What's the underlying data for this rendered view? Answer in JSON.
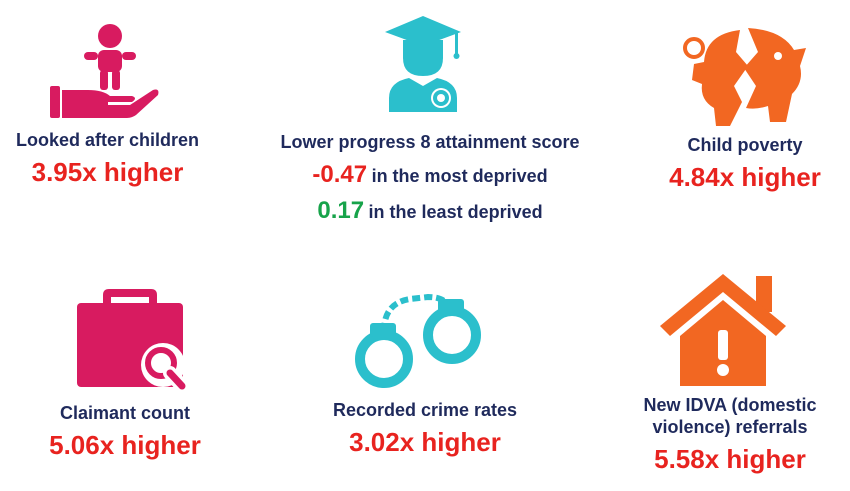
{
  "colors": {
    "navy": "#1f2a5c",
    "red": "#e8231f",
    "green": "#17a34a",
    "pink": "#d81b60",
    "teal": "#2bbfcc",
    "orange": "#f26722"
  },
  "stats": {
    "looked_after": {
      "label": "Looked after children",
      "value": "3.95x higher",
      "icon": "hand-holding-child-icon"
    },
    "progress8": {
      "label": "Lower progress 8 attainment score",
      "most_value": "-0.47",
      "most_text": "in the most deprived",
      "least_value": "0.17",
      "least_text": "in the least deprived",
      "icon": "graduate-icon"
    },
    "child_poverty": {
      "label": "Child poverty",
      "value": "4.84x higher",
      "icon": "broken-piggy-bank-icon"
    },
    "claimant": {
      "label": "Claimant count",
      "value": "5.06x higher",
      "icon": "briefcase-search-icon"
    },
    "crime": {
      "label": "Recorded crime rates",
      "value": "3.02x higher",
      "icon": "handcuffs-icon"
    },
    "idva": {
      "label_line1": "New IDVA (domestic",
      "label_line2": "violence) referrals",
      "value": "5.58x higher",
      "icon": "house-warning-icon"
    }
  }
}
